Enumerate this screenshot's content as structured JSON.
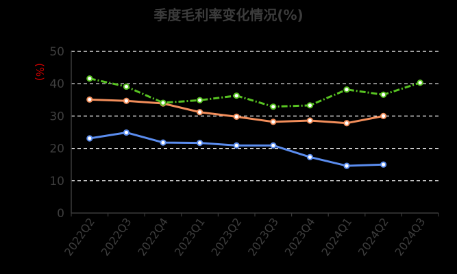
{
  "chart_data": {
    "type": "line",
    "title": "季度毛利率变化情况(%)",
    "ylabel": "(%)",
    "xlabel": "",
    "ylim": [
      0,
      50
    ],
    "yticks": [
      0,
      10,
      20,
      30,
      40,
      50
    ],
    "grid": true,
    "categories": [
      "2022Q2",
      "2022Q3",
      "2022Q4",
      "2023Q1",
      "2023Q2",
      "2023Q3",
      "2023Q4",
      "2024Q1",
      "2024Q2",
      "2024Q3"
    ],
    "series": [
      {
        "color": "#5b8def",
        "dashed": false,
        "values": [
          23.1,
          24.9,
          21.8,
          21.7,
          20.9,
          20.9,
          17.3,
          14.6,
          15.0,
          null
        ]
      },
      {
        "color": "#f28e5b",
        "dashed": false,
        "values": [
          35.1,
          34.7,
          33.9,
          31.2,
          29.8,
          28.2,
          28.6,
          27.8,
          30.0,
          null
        ]
      },
      {
        "color": "#58c322",
        "dashed": true,
        "values": [
          41.6,
          39.1,
          34.1,
          34.9,
          36.3,
          32.9,
          33.3,
          38.2,
          36.6,
          40.3
        ]
      }
    ]
  }
}
